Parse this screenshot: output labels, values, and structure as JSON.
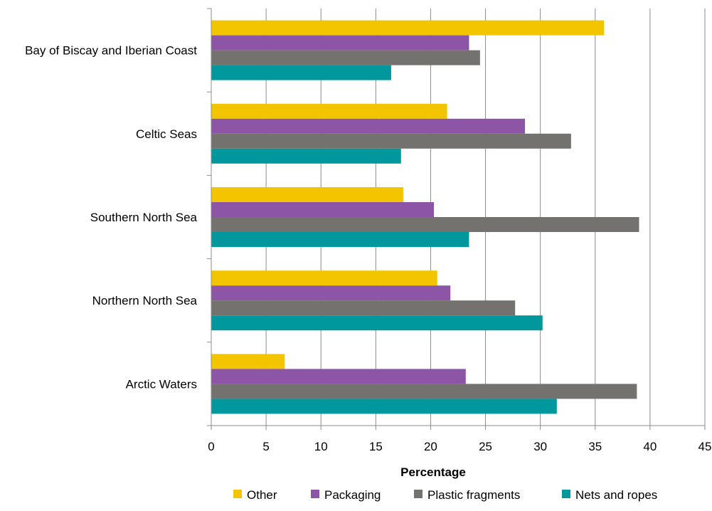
{
  "chart_data": {
    "type": "bar",
    "orientation": "horizontal",
    "title": "",
    "xlabel": "Percentage",
    "ylabel": "",
    "xlim": [
      0,
      45
    ],
    "xticks": [
      0,
      5,
      10,
      15,
      20,
      25,
      30,
      35,
      40,
      45
    ],
    "grid": "vertical",
    "legend_position": "bottom",
    "categories": [
      "Bay of Biscay and Iberian Coast",
      "Celtic Seas",
      "Southern North Sea",
      "Northern North Sea",
      "Arctic Waters"
    ],
    "series": [
      {
        "name": "Other",
        "color": "#f2c500",
        "values": [
          35.8,
          21.5,
          17.5,
          20.6,
          6.7
        ]
      },
      {
        "name": "Packaging",
        "color": "#8c55a5",
        "values": [
          23.5,
          28.6,
          20.3,
          21.8,
          23.2
        ]
      },
      {
        "name": "Plastic fragments",
        "color": "#74726e",
        "values": [
          24.5,
          32.8,
          39.0,
          27.7,
          38.8
        ]
      },
      {
        "name": "Nets and ropes",
        "color": "#00979d",
        "values": [
          16.4,
          17.3,
          23.5,
          30.2,
          31.5
        ]
      }
    ]
  }
}
